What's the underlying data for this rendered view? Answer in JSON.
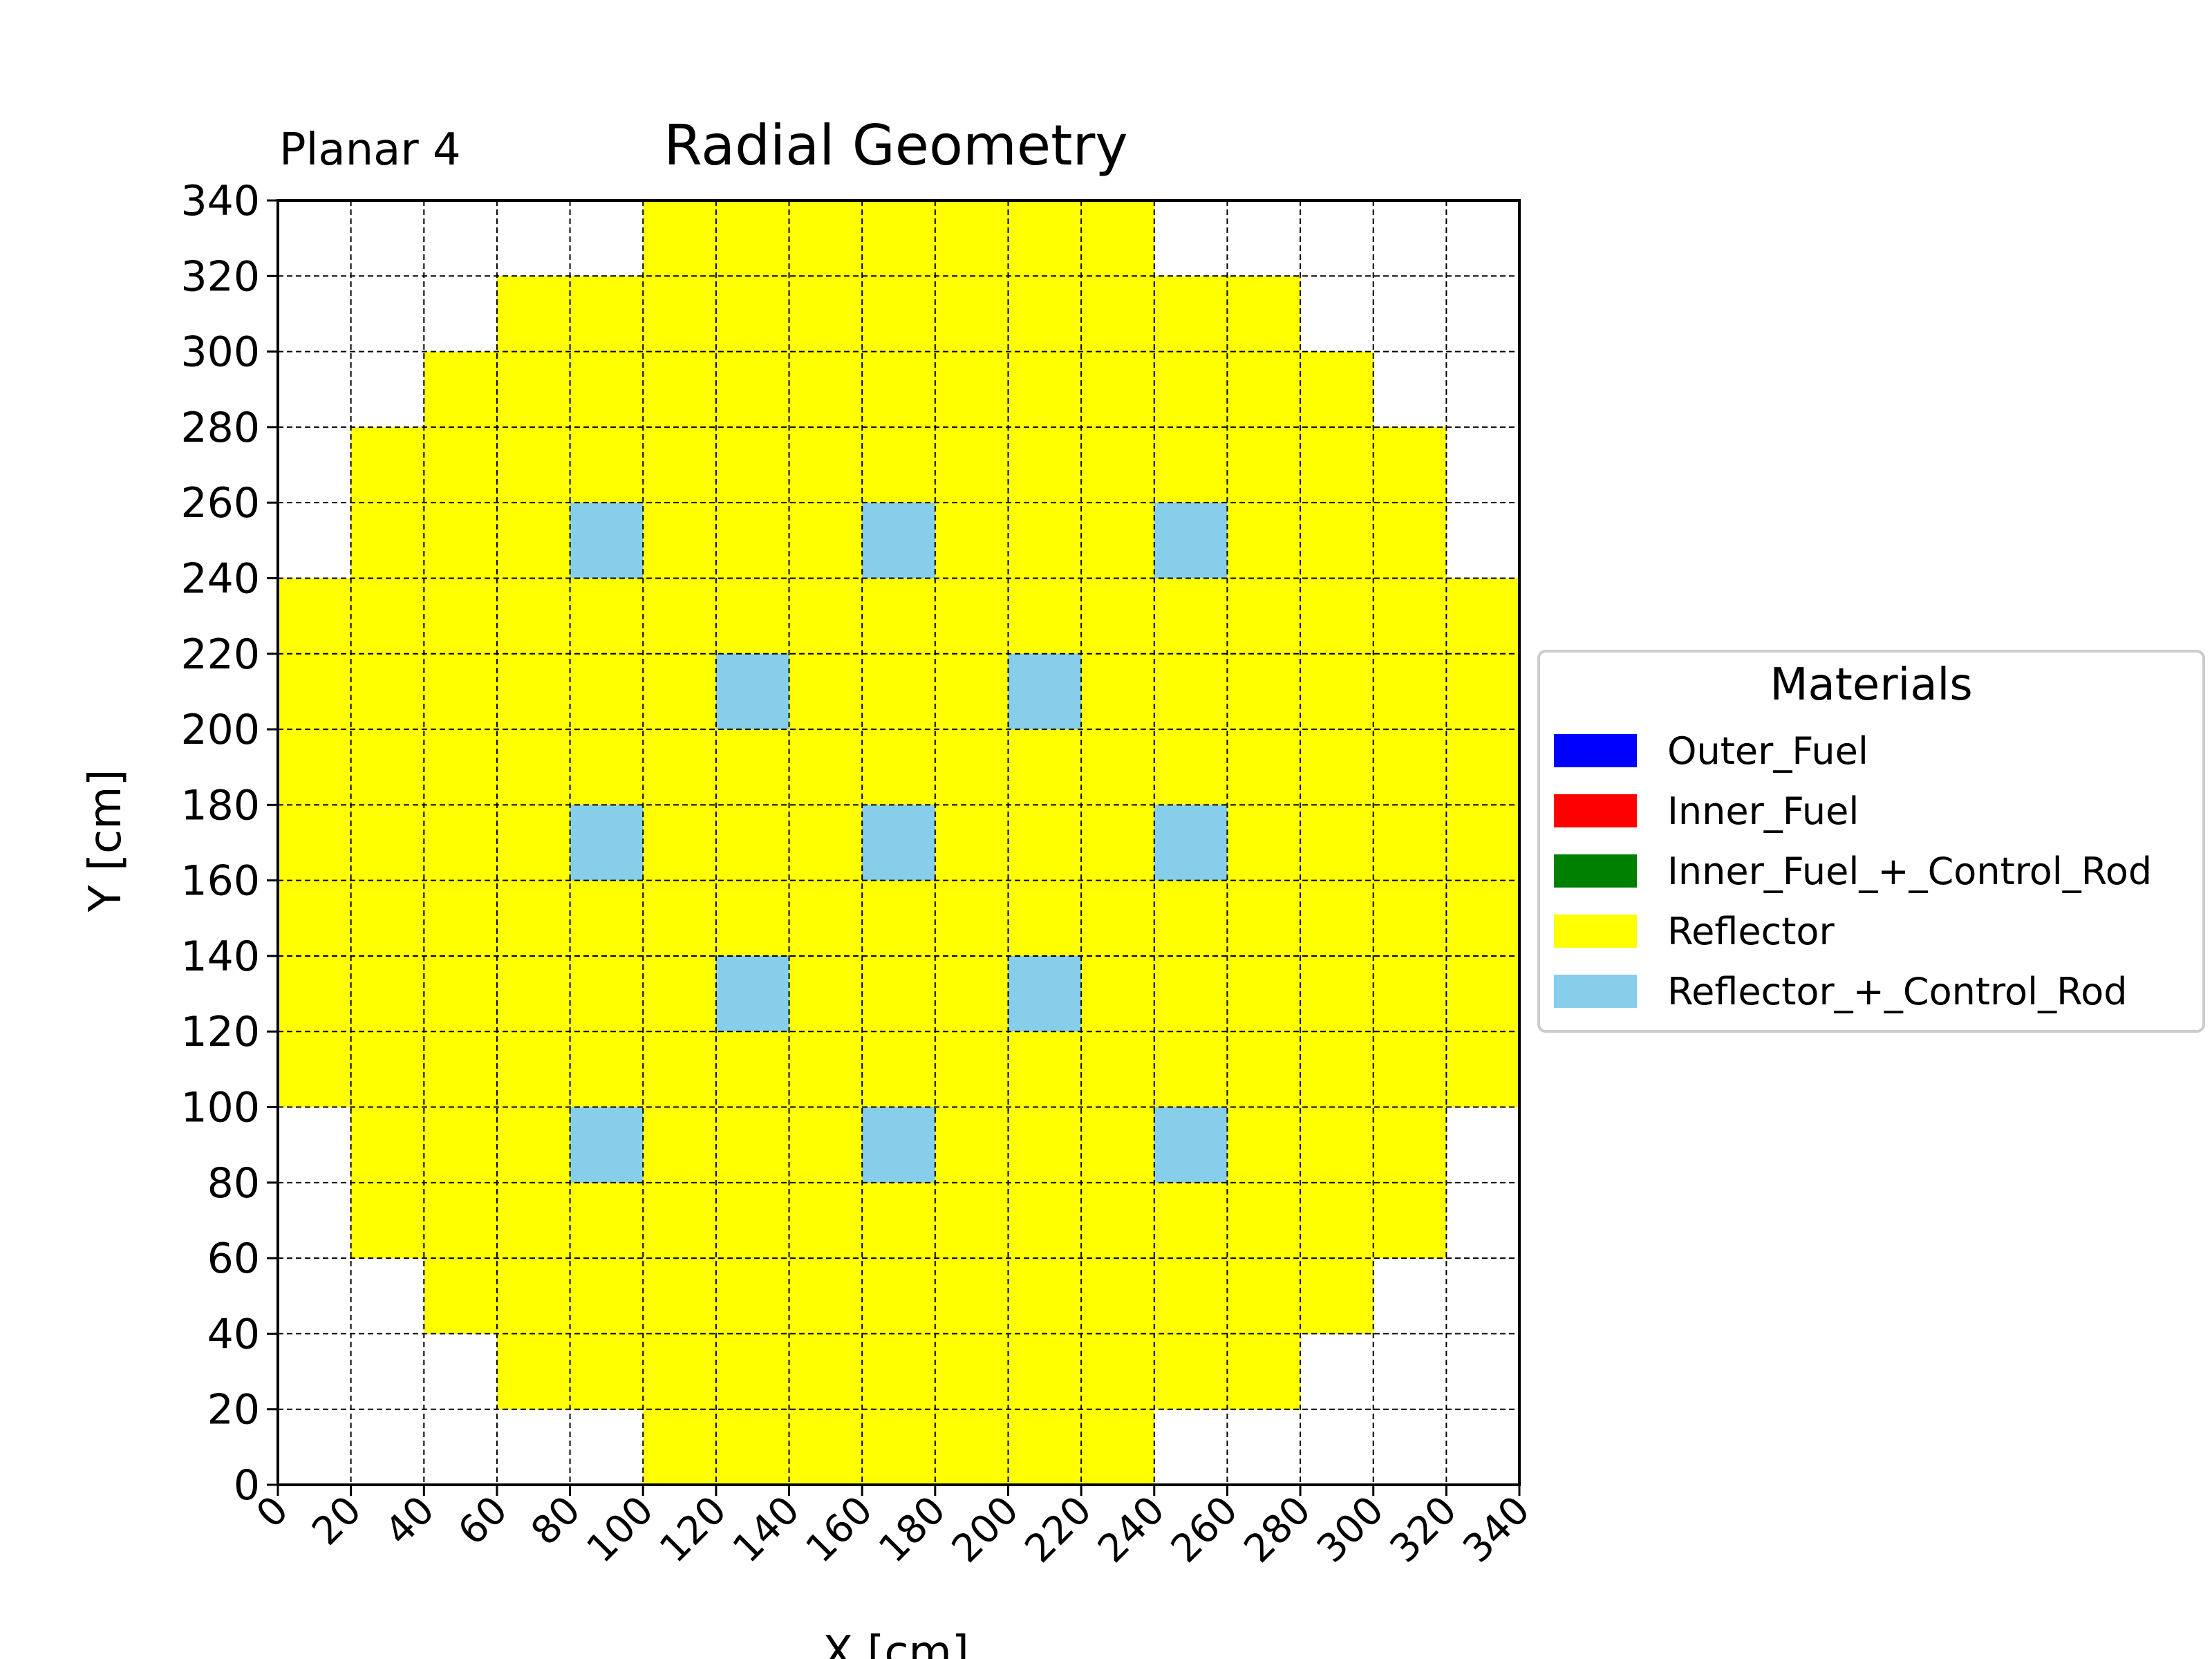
{
  "chart_data": {
    "type": "heatmap",
    "title": "Radial Geometry",
    "subtitle": "Planar 4",
    "xlabel": "X [cm]",
    "ylabel": "Y [cm]",
    "xlim": [
      0,
      340
    ],
    "ylim": [
      0,
      340
    ],
    "cell_size": 20,
    "xticks": [
      0,
      20,
      40,
      60,
      80,
      100,
      120,
      140,
      160,
      180,
      200,
      220,
      240,
      260,
      280,
      300,
      320,
      340
    ],
    "yticks": [
      0,
      20,
      40,
      60,
      80,
      100,
      120,
      140,
      160,
      180,
      200,
      220,
      240,
      260,
      280,
      300,
      320,
      340
    ],
    "grid": true,
    "legend_title": "Materials",
    "legend_position": "center-right, outside plot",
    "materials": [
      {
        "name": "Outer_Fuel",
        "color": "#0000ff"
      },
      {
        "name": "Inner_Fuel",
        "color": "#ff0000"
      },
      {
        "name": "Inner_Fuel_+_Control_Rod",
        "color": "#008000"
      },
      {
        "name": "Reflector",
        "color": "#ffff00"
      },
      {
        "name": "Reflector_+_Control_Rod",
        "color": "#87ceeb"
      }
    ],
    "map_legend": {
      "0": "empty",
      "1": "Reflector",
      "2": "Reflector_+_Control_Rod"
    },
    "rows_top_to_bottom": [
      [
        0,
        0,
        0,
        0,
        0,
        1,
        1,
        1,
        1,
        1,
        1,
        1,
        0,
        0,
        0,
        0,
        0
      ],
      [
        0,
        0,
        0,
        1,
        1,
        1,
        1,
        1,
        1,
        1,
        1,
        1,
        1,
        1,
        0,
        0,
        0
      ],
      [
        0,
        0,
        1,
        1,
        1,
        1,
        1,
        1,
        1,
        1,
        1,
        1,
        1,
        1,
        1,
        0,
        0
      ],
      [
        0,
        1,
        1,
        1,
        1,
        1,
        1,
        1,
        1,
        1,
        1,
        1,
        1,
        1,
        1,
        1,
        0
      ],
      [
        0,
        1,
        1,
        1,
        2,
        1,
        1,
        1,
        2,
        1,
        1,
        1,
        2,
        1,
        1,
        1,
        0
      ],
      [
        1,
        1,
        1,
        1,
        1,
        1,
        1,
        1,
        1,
        1,
        1,
        1,
        1,
        1,
        1,
        1,
        1
      ],
      [
        1,
        1,
        1,
        1,
        1,
        1,
        2,
        1,
        1,
        1,
        2,
        1,
        1,
        1,
        1,
        1,
        1
      ],
      [
        1,
        1,
        1,
        1,
        1,
        1,
        1,
        1,
        1,
        1,
        1,
        1,
        1,
        1,
        1,
        1,
        1
      ],
      [
        1,
        1,
        1,
        1,
        2,
        1,
        1,
        1,
        2,
        1,
        1,
        1,
        2,
        1,
        1,
        1,
        1
      ],
      [
        1,
        1,
        1,
        1,
        1,
        1,
        1,
        1,
        1,
        1,
        1,
        1,
        1,
        1,
        1,
        1,
        1
      ],
      [
        1,
        1,
        1,
        1,
        1,
        1,
        2,
        1,
        1,
        1,
        2,
        1,
        1,
        1,
        1,
        1,
        1
      ],
      [
        1,
        1,
        1,
        1,
        1,
        1,
        1,
        1,
        1,
        1,
        1,
        1,
        1,
        1,
        1,
        1,
        1
      ],
      [
        0,
        1,
        1,
        1,
        2,
        1,
        1,
        1,
        2,
        1,
        1,
        1,
        2,
        1,
        1,
        1,
        0
      ],
      [
        0,
        1,
        1,
        1,
        1,
        1,
        1,
        1,
        1,
        1,
        1,
        1,
        1,
        1,
        1,
        1,
        0
      ],
      [
        0,
        0,
        1,
        1,
        1,
        1,
        1,
        1,
        1,
        1,
        1,
        1,
        1,
        1,
        1,
        0,
        0
      ],
      [
        0,
        0,
        0,
        1,
        1,
        1,
        1,
        1,
        1,
        1,
        1,
        1,
        1,
        1,
        0,
        0,
        0
      ],
      [
        0,
        0,
        0,
        0,
        0,
        1,
        1,
        1,
        1,
        1,
        1,
        1,
        0,
        0,
        0,
        0,
        0
      ]
    ]
  }
}
